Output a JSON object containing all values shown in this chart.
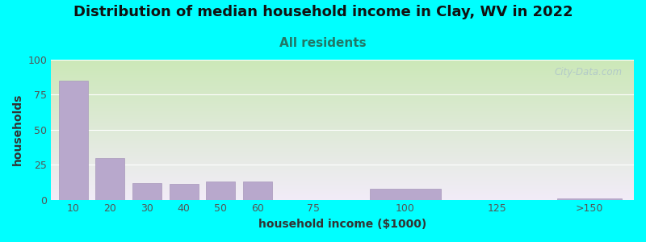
{
  "title": "Distribution of median household income in Clay, WV in 2022",
  "subtitle": "All residents",
  "xlabel": "household income ($1000)",
  "ylabel": "households",
  "background_color": "#00FFFF",
  "bar_color": "#b8a8cc",
  "bar_edge_color": "#a898bb",
  "categories": [
    "10",
    "20",
    "30",
    "40",
    "50",
    "60",
    "75",
    "100",
    "125",
    ">150"
  ],
  "x_positions": [
    10,
    20,
    30,
    40,
    50,
    60,
    75,
    100,
    125,
    150
  ],
  "bar_widths": [
    9,
    9,
    9,
    9,
    9,
    9,
    12,
    22,
    22,
    20
  ],
  "values": [
    85,
    30,
    12,
    11,
    13,
    13,
    0,
    8,
    0,
    1
  ],
  "ylim": [
    0,
    100
  ],
  "yticks": [
    0,
    25,
    50,
    75,
    100
  ],
  "xtick_positions": [
    10,
    20,
    30,
    40,
    50,
    60,
    75,
    100,
    125,
    150
  ],
  "xtick_labels": [
    "10",
    "20",
    "30",
    "40",
    "50",
    "60",
    "75",
    "100",
    "125",
    ">150"
  ],
  "xlim": [
    4,
    162
  ],
  "watermark": "City-Data.com",
  "title_fontsize": 13,
  "subtitle_fontsize": 11,
  "axis_label_fontsize": 10,
  "subtitle_color": "#227766",
  "title_color": "#111111",
  "tick_color": "#555555",
  "label_color": "#333333",
  "plot_bg_top": "#cce8b8",
  "plot_bg_bottom": "#f2ecf8"
}
